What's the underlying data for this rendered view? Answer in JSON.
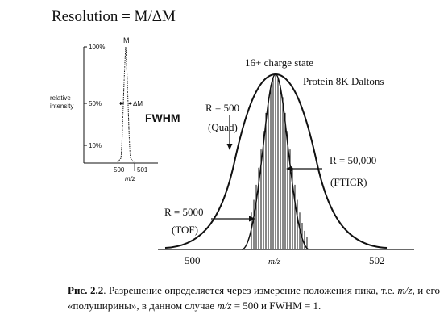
{
  "resolution_formula": "Resolution = M/ΔM",
  "inset": {
    "y_label_line1": "relative",
    "y_label_line2": "intensity",
    "tick_100": "100%",
    "tick_50": "50%",
    "tick_10": "10%",
    "peak_label": "M",
    "delta_label": "ΔM",
    "fwhm_label": "FWHM",
    "x_tick_500": "500",
    "x_tick_501": "501",
    "x_label": "m/z"
  },
  "main": {
    "charge_state": "16+ charge state",
    "protein": "Protein 8K Daltons",
    "quad_r": "R = 500",
    "quad_name": "(Quad)",
    "ft_r": "R = 50,000",
    "ft_name": "(FTICR)",
    "tof_r": "R = 5000",
    "tof_name": "(TOF)",
    "x_tick_500": "500",
    "x_tick_502": "502",
    "x_label": "m/z"
  },
  "caption": {
    "label": "Рис. 2.2",
    "part1": ". Разрешение определяется через измерение положения пика, т.е. ",
    "mz1": "m/z",
    "part2": ", и его «полуширины», в данном случае ",
    "mz2": "m/z",
    "part3": " = 500 и FWHM = 1."
  }
}
